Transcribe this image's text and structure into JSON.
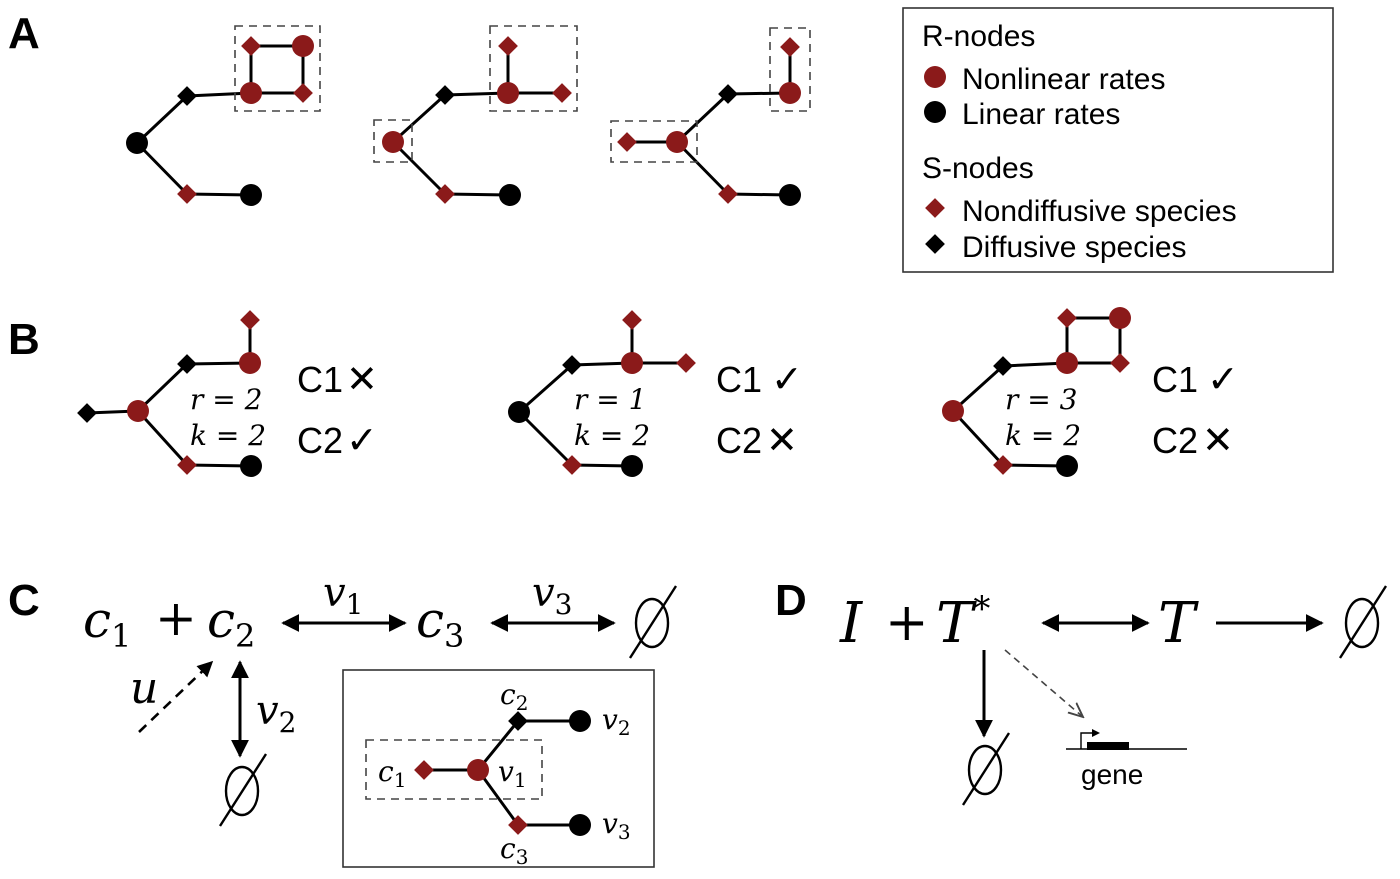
{
  "colors": {
    "red": "#8b1a1a",
    "black": "#000000"
  },
  "panel_labels": {
    "a": "A",
    "b": "B",
    "c": "C",
    "d": "D"
  },
  "legend": {
    "r_title": "R-nodes",
    "r_nonlinear": "Nonlinear rates",
    "r_linear": "Linear rates",
    "s_title": "S-nodes",
    "s_nondiffusive": "Nondiffusive species",
    "s_diffusive": "Diffusive species"
  },
  "panel_b": [
    {
      "r": "r = 2",
      "k": "k = 2",
      "c1": "C1",
      "c1_mark": "✕",
      "c2": "C2",
      "c2_mark": "✓"
    },
    {
      "r": "r = 1",
      "k": "k = 2",
      "c1": "C1",
      "c1_mark": "✓",
      "c2": "C2",
      "c2_mark": "✕"
    },
    {
      "r": "r = 3",
      "k": "k = 2",
      "c1": "C1",
      "c1_mark": "✓",
      "c2": "C2",
      "c2_mark": "✕"
    }
  ],
  "panel_c": {
    "c1": "c",
    "c1_sub": "1",
    "plus": "+",
    "c2": "c",
    "c2_sub": "2",
    "c3": "c",
    "c3_sub": "3",
    "v1": "v",
    "v1_sub": "1",
    "v2": "v",
    "v2_sub": "2",
    "v3": "v",
    "v3_sub": "3",
    "u": "u",
    "empty": "∅",
    "inset": {
      "c1": "c",
      "c1_sub": "1",
      "c2": "c",
      "c2_sub": "2",
      "c3": "c",
      "c3_sub": "3",
      "v1": "v",
      "v1_sub": "1",
      "v2": "v",
      "v2_sub": "2",
      "v3": "v",
      "v3_sub": "3"
    }
  },
  "panel_d": {
    "I": "I",
    "plus": "+",
    "T_star": "T",
    "star": "*",
    "T": "T",
    "empty": "∅",
    "gene": "gene"
  }
}
